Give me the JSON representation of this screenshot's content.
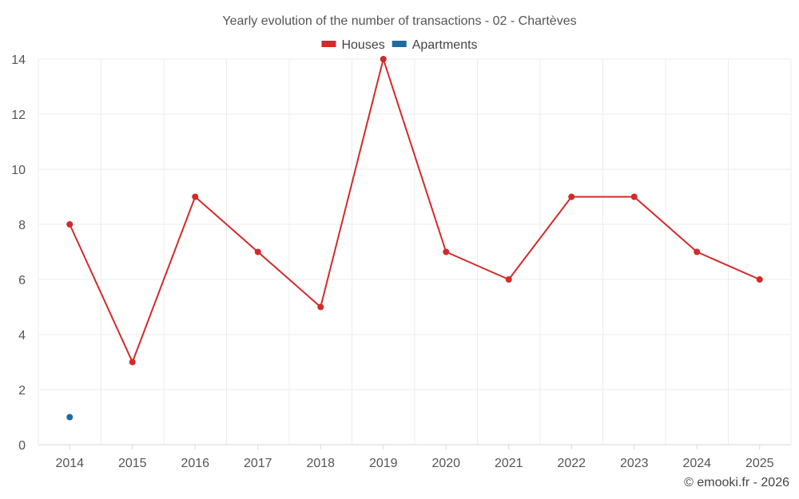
{
  "chart_data": {
    "type": "line",
    "title": "Yearly evolution of the number of transactions - 02 - Chartèves",
    "categories": [
      "2014",
      "2015",
      "2016",
      "2017",
      "2018",
      "2019",
      "2020",
      "2021",
      "2022",
      "2023",
      "2024",
      "2025"
    ],
    "series": [
      {
        "name": "Houses",
        "color": "#d32a2a",
        "values": [
          8,
          3,
          9,
          7,
          5,
          14,
          7,
          6,
          9,
          9,
          7,
          6
        ]
      },
      {
        "name": "Apartments",
        "color": "#1f6aa0",
        "values": [
          1,
          null,
          null,
          null,
          null,
          null,
          null,
          null,
          null,
          null,
          null,
          null
        ]
      }
    ],
    "ylim": [
      0,
      14
    ],
    "yticks": [
      0,
      2,
      4,
      6,
      8,
      10,
      12,
      14
    ],
    "grid": true,
    "legend_position": "top-center",
    "xlabel": "",
    "ylabel": ""
  },
  "credit": "© emooki.fr - 2026"
}
